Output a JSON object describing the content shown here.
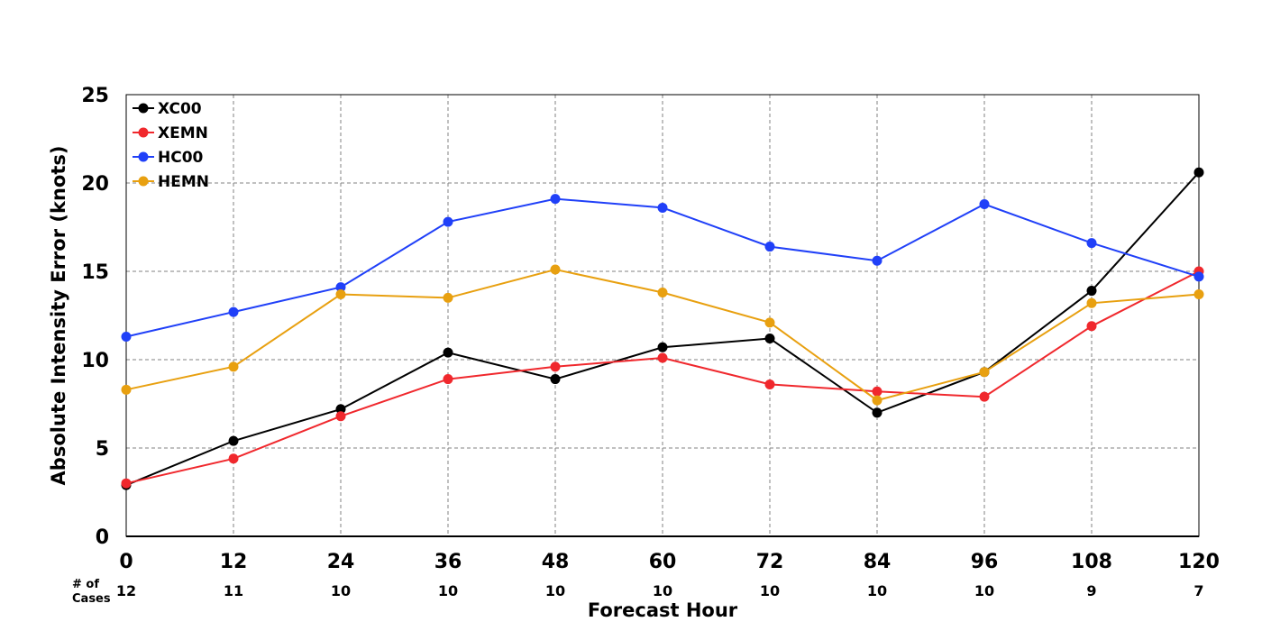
{
  "chart_data": {
    "type": "line",
    "xlabel": "Forecast Hour",
    "ylabel": "Absolute Intensity Error (knots)",
    "x": [
      0,
      12,
      24,
      36,
      48,
      60,
      72,
      84,
      96,
      108,
      120
    ],
    "x_tick_labels": [
      "0",
      "12",
      "24",
      "36",
      "48",
      "60",
      "72",
      "84",
      "96",
      "108",
      "120"
    ],
    "y_ticks": [
      0,
      5,
      10,
      15,
      20,
      25
    ],
    "y_tick_labels": [
      "0",
      "5",
      "10",
      "15",
      "20",
      "25"
    ],
    "xlim": [
      0,
      120
    ],
    "ylim": [
      0,
      25
    ],
    "grid": true,
    "legend_position": "top-left",
    "cases_label": [
      "# of",
      "Cases"
    ],
    "cases": [
      "12",
      "11",
      "10",
      "10",
      "10",
      "10",
      "10",
      "10",
      "10",
      "9",
      "7"
    ],
    "series": [
      {
        "name": "XC00",
        "color": "#000000",
        "values": [
          2.9,
          5.4,
          7.2,
          10.4,
          8.9,
          10.7,
          11.2,
          7.0,
          9.3,
          13.9,
          20.6
        ]
      },
      {
        "name": "XEMN",
        "color": "#f0282d",
        "values": [
          3.0,
          4.4,
          6.8,
          8.9,
          9.6,
          10.1,
          8.6,
          8.2,
          7.9,
          11.9,
          15.0
        ]
      },
      {
        "name": "HC00",
        "color": "#2040f8",
        "values": [
          11.3,
          12.7,
          14.1,
          17.8,
          19.1,
          18.6,
          16.4,
          15.6,
          18.8,
          16.6,
          14.7
        ]
      },
      {
        "name": "HEMN",
        "color": "#e8a010",
        "values": [
          8.3,
          9.6,
          13.7,
          13.5,
          15.1,
          13.8,
          12.1,
          7.7,
          9.3,
          13.2,
          13.7
        ]
      }
    ]
  }
}
